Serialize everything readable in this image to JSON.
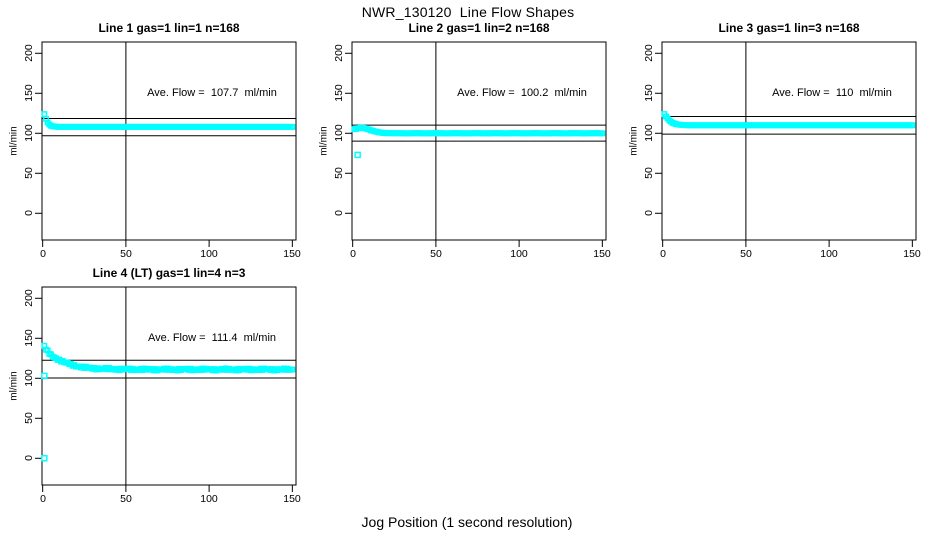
{
  "figure": {
    "title": "NWR_130120  Line Flow Shapes",
    "xlabel": "Jog Position (1 second resolution)",
    "ylabel": "ml/min",
    "marker_color": "#00FFFF",
    "axis_color": "#000000",
    "background": "#FFFFFF"
  },
  "shared": {
    "x_ticks": [
      "0",
      "50",
      "100",
      "150"
    ],
    "y_ticks": [
      "200",
      "150",
      "100",
      "50",
      "0"
    ]
  },
  "chart_data": [
    {
      "type": "scatter",
      "title": "Line 1 gas=1 lin=1 n=168",
      "annotation": "Ave. Flow =  107.7  ml/min",
      "ave_flow_ml_min": 107.7,
      "n": 168,
      "xlabel": "Jog Position (1 second resolution)",
      "ylabel": "ml/min",
      "xlim": [
        -0.4,
        152.2
      ],
      "ylim": [
        -33.4,
        214.1
      ],
      "x_tick_values": [
        0,
        50,
        100,
        150
      ],
      "y_tick_values": [
        200,
        150,
        100,
        50,
        0
      ],
      "ref_vline_x": 50,
      "ref_hlines": [
        118.5,
        96.9
      ],
      "sample_x_range": [
        1,
        150
      ],
      "curve_breakpoints": [
        [
          1,
          124
        ],
        [
          2,
          118
        ],
        [
          3,
          113.5
        ],
        [
          4,
          111
        ],
        [
          5,
          109.5
        ],
        [
          6,
          108.8
        ],
        [
          8,
          108.2
        ],
        [
          10,
          108
        ],
        [
          150,
          108
        ]
      ],
      "noise": 0,
      "outliers": []
    },
    {
      "type": "scatter",
      "title": "Line 2 gas=1 lin=2 n=168",
      "annotation": "Ave. Flow =  100.2  ml/min",
      "ave_flow_ml_min": 100.2,
      "n": 168,
      "xlabel": "Jog Position (1 second resolution)",
      "ylabel": "ml/min",
      "xlim": [
        -0.4,
        152.2
      ],
      "ylim": [
        -33.4,
        214.1
      ],
      "x_tick_values": [
        0,
        50,
        100,
        150
      ],
      "y_tick_values": [
        200,
        150,
        100,
        50,
        0
      ],
      "ref_vline_x": 50,
      "ref_hlines": [
        110.2,
        90.2
      ],
      "sample_x_range": [
        1,
        150
      ],
      "curve_breakpoints": [
        [
          1,
          105
        ],
        [
          2,
          105.5
        ],
        [
          4,
          106.5
        ],
        [
          6,
          107
        ],
        [
          8,
          106
        ],
        [
          10,
          104.5
        ],
        [
          13,
          102.5
        ],
        [
          16,
          101
        ],
        [
          20,
          100.3
        ],
        [
          25,
          100
        ],
        [
          150,
          100
        ]
      ],
      "noise": 0.2,
      "outliers": [
        [
          3,
          73
        ]
      ]
    },
    {
      "type": "scatter",
      "title": "Line 3 gas=1 lin=3 n=168",
      "annotation": "Ave. Flow =  110  ml/min",
      "ave_flow_ml_min": 110,
      "n": 168,
      "xlabel": "Jog Position (1 second resolution)",
      "ylabel": "ml/min",
      "xlim": [
        -0.4,
        152.2
      ],
      "ylim": [
        -33.4,
        214.1
      ],
      "x_tick_values": [
        0,
        50,
        100,
        150
      ],
      "y_tick_values": [
        200,
        150,
        100,
        50,
        0
      ],
      "ref_vline_x": 50,
      "ref_hlines": [
        121,
        99
      ],
      "sample_x_range": [
        1,
        150
      ],
      "curve_breakpoints": [
        [
          1,
          124
        ],
        [
          2,
          121
        ],
        [
          3,
          118.5
        ],
        [
          4,
          116
        ],
        [
          5,
          114.5
        ],
        [
          6,
          113
        ],
        [
          8,
          111.5
        ],
        [
          10,
          110.8
        ],
        [
          13,
          110.2
        ],
        [
          16,
          110
        ],
        [
          150,
          110
        ]
      ],
      "noise": 0,
      "outliers": []
    },
    {
      "type": "scatter",
      "title": "Line 4 (LT) gas=1 lin=4 n=3",
      "annotation": "Ave. Flow =  111.4  ml/min",
      "ave_flow_ml_min": 111.4,
      "n": 3,
      "xlabel": "Jog Position (1 second resolution)",
      "ylabel": "ml/min",
      "xlim": [
        -0.4,
        152.2
      ],
      "ylim": [
        -33.4,
        214.1
      ],
      "x_tick_values": [
        0,
        50,
        100,
        150
      ],
      "y_tick_values": [
        200,
        150,
        100,
        50,
        0
      ],
      "ref_vline_x": 50,
      "ref_hlines": [
        122.5,
        100.3
      ],
      "sample_x_range": [
        1,
        150
      ],
      "curve_breakpoints": [
        [
          1,
          140
        ],
        [
          2,
          136
        ],
        [
          3,
          133.5
        ],
        [
          4,
          131
        ],
        [
          5,
          129
        ],
        [
          6,
          127.5
        ],
        [
          8,
          125
        ],
        [
          10,
          123
        ],
        [
          12,
          121
        ],
        [
          15,
          118.5
        ],
        [
          18,
          116.5
        ],
        [
          21,
          115
        ],
        [
          25,
          113.5
        ],
        [
          30,
          112.5
        ],
        [
          35,
          112
        ],
        [
          45,
          111.4
        ],
        [
          60,
          111
        ],
        [
          150,
          111
        ]
      ],
      "noise": 0.9,
      "outliers": [
        [
          1,
          103
        ],
        [
          1,
          0
        ]
      ]
    }
  ]
}
